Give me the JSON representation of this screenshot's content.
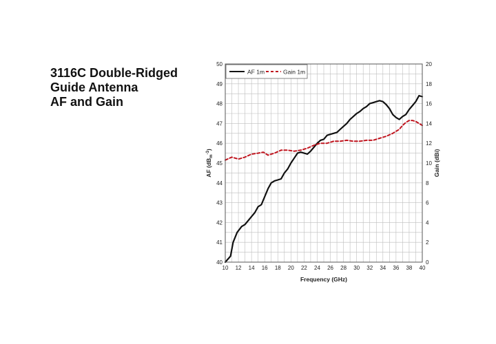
{
  "heading": {
    "line1": "3116C Double-Ridged",
    "line2": "Guide Antenna",
    "line3": "AF and Gain"
  },
  "chart_data": {
    "type": "line",
    "xlabel": "Frequency (GHz)",
    "ylabel_left": "AF (dB",
    "ylabel_left_sub": "m",
    "ylabel_left_sup": "-1",
    "ylabel_left_end": ")",
    "ylabel_right": "Gain (dBi)",
    "xlim": [
      10,
      40
    ],
    "ylim_left": [
      40,
      50
    ],
    "ylim_right": [
      0,
      20
    ],
    "x_ticks": [
      10,
      12,
      14,
      16,
      18,
      20,
      22,
      24,
      26,
      28,
      30,
      32,
      34,
      36,
      38,
      40
    ],
    "y_left_ticks": [
      40,
      41,
      42,
      43,
      44,
      45,
      46,
      47,
      48,
      49,
      50
    ],
    "y_right_ticks": [
      0,
      2,
      4,
      6,
      8,
      10,
      12,
      14,
      16,
      18,
      20
    ],
    "grid": true,
    "legend_position": "top-left",
    "series": [
      {
        "name": "AF 1m",
        "axis": "left",
        "color": "#111111",
        "style": "solid",
        "x": [
          10,
          10.8,
          11.2,
          11.8,
          12.5,
          13,
          13.5,
          14,
          14.5,
          15,
          15.5,
          16,
          16.5,
          17,
          17.5,
          18,
          18.5,
          19,
          19.5,
          20,
          20.5,
          21,
          21.5,
          22,
          22.5,
          23,
          23.5,
          24,
          24.5,
          25,
          25.5,
          26,
          26.5,
          27,
          27.5,
          28,
          28.5,
          29,
          29.5,
          30,
          30.5,
          31,
          31.5,
          32,
          32.5,
          33,
          33.5,
          34,
          34.5,
          35,
          35.5,
          36,
          36.5,
          37,
          37.5,
          38,
          38.5,
          39,
          39.5,
          40
        ],
        "values": [
          40.0,
          40.3,
          41.0,
          41.5,
          41.8,
          41.9,
          42.1,
          42.3,
          42.5,
          42.8,
          42.9,
          43.3,
          43.7,
          44.0,
          44.1,
          44.15,
          44.2,
          44.5,
          44.7,
          45.0,
          45.25,
          45.5,
          45.55,
          45.5,
          45.45,
          45.6,
          45.8,
          46.0,
          46.15,
          46.2,
          46.4,
          46.45,
          46.5,
          46.55,
          46.7,
          46.85,
          47.0,
          47.2,
          47.35,
          47.5,
          47.6,
          47.75,
          47.85,
          48.0,
          48.05,
          48.1,
          48.15,
          48.1,
          47.95,
          47.75,
          47.45,
          47.3,
          47.2,
          47.35,
          47.45,
          47.7,
          47.9,
          48.1,
          48.4,
          48.35
        ]
      },
      {
        "name": "Gain 1m",
        "axis": "right",
        "color": "#c0141e",
        "style": "dashed",
        "x": [
          10,
          11,
          12,
          13,
          14,
          15,
          15.8,
          16.5,
          17.5,
          18.5,
          19.5,
          20.5,
          21.5,
          22.5,
          23.5,
          24.5,
          25.5,
          26.5,
          27.5,
          28.5,
          29.5,
          30.5,
          31.5,
          32.5,
          33.5,
          34.5,
          35.5,
          36.5,
          37,
          37.5,
          38,
          38.5,
          39,
          39.5,
          40
        ],
        "values": [
          10.3,
          10.6,
          10.4,
          10.6,
          10.9,
          11.0,
          11.1,
          10.8,
          11.0,
          11.3,
          11.3,
          11.2,
          11.3,
          11.5,
          11.8,
          12.0,
          12.0,
          12.2,
          12.2,
          12.3,
          12.2,
          12.2,
          12.3,
          12.3,
          12.5,
          12.7,
          13.0,
          13.4,
          13.8,
          14.1,
          14.3,
          14.3,
          14.2,
          14.0,
          13.8
        ]
      }
    ]
  }
}
